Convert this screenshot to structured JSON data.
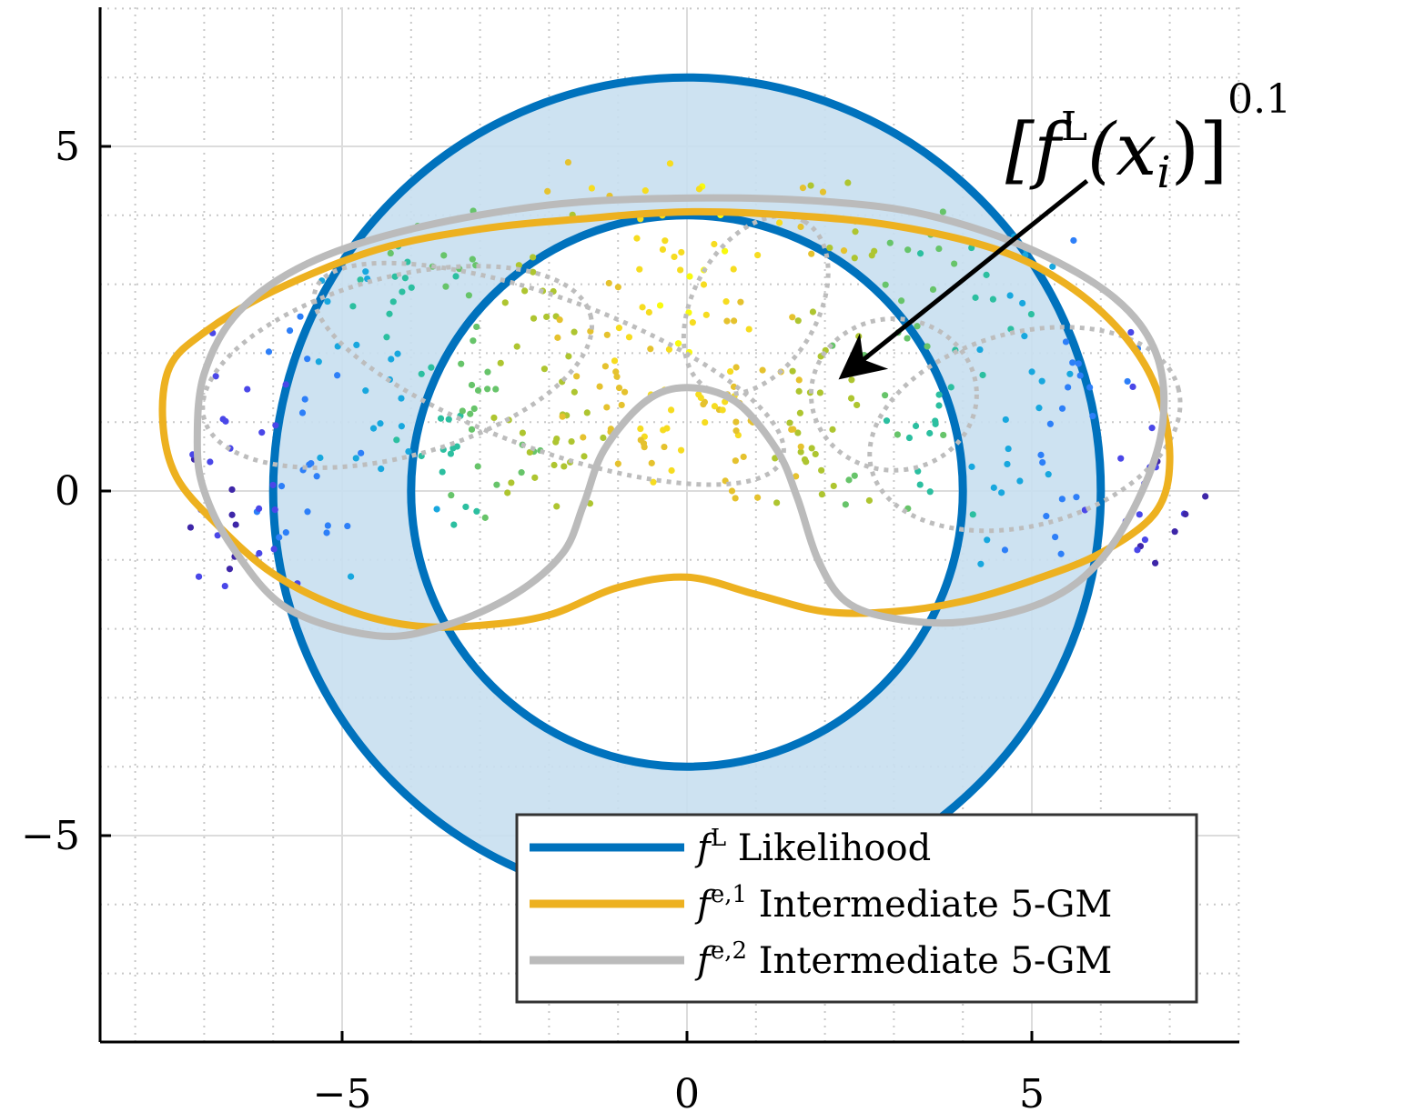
{
  "chart_data": {
    "type": "scatter",
    "xlim": [
      -8.5,
      8
    ],
    "ylim": [
      -8.1,
      7
    ],
    "grid": true,
    "minor_grid": true,
    "x_ticks": [
      -5,
      0,
      5
    ],
    "y_ticks": [
      5,
      0,
      -5
    ],
    "x_tick_labels": [
      "−5",
      "0",
      "5"
    ],
    "y_tick_labels": [
      "5",
      "0",
      "−5"
    ],
    "likelihood": {
      "center": [
        0,
        0
      ],
      "inner_radius": 4.0,
      "outer_radius": 6.0,
      "color": "#0072BD",
      "fill": "#c8dff0"
    },
    "curves": [
      {
        "id": "fe1",
        "color": "#EDB120",
        "style": "solid",
        "points": [
          [
            -7.6,
            1.0
          ],
          [
            -7.5,
            1.8
          ],
          [
            -7.0,
            2.3
          ],
          [
            -6.0,
            2.9
          ],
          [
            -4.5,
            3.5
          ],
          [
            -3.0,
            3.8
          ],
          [
            -1.5,
            3.95
          ],
          [
            0,
            4.05
          ],
          [
            1.5,
            4.0
          ],
          [
            3.0,
            3.85
          ],
          [
            4.5,
            3.5
          ],
          [
            5.5,
            3.0
          ],
          [
            6.3,
            2.3
          ],
          [
            6.8,
            1.5
          ],
          [
            7.0,
            0.5
          ],
          [
            6.8,
            -0.3
          ],
          [
            6.0,
            -0.9
          ],
          [
            5.0,
            -1.3
          ],
          [
            4.0,
            -1.6
          ],
          [
            3.0,
            -1.75
          ],
          [
            2.0,
            -1.75
          ],
          [
            1.0,
            -1.5
          ],
          [
            0,
            -1.25
          ],
          [
            -1.0,
            -1.4
          ],
          [
            -2.0,
            -1.8
          ],
          [
            -3.0,
            -1.95
          ],
          [
            -4.0,
            -1.95
          ],
          [
            -5.0,
            -1.7
          ],
          [
            -6.0,
            -1.2
          ],
          [
            -6.8,
            -0.5
          ],
          [
            -7.4,
            0.2
          ],
          [
            -7.6,
            1.0
          ]
        ]
      },
      {
        "id": "fe2",
        "color": "#BBBBBB",
        "style": "solid",
        "points": [
          [
            -7.1,
            0.7
          ],
          [
            -7.0,
            1.7
          ],
          [
            -6.5,
            2.6
          ],
          [
            -5.5,
            3.3
          ],
          [
            -4.0,
            3.8
          ],
          [
            -2.0,
            4.15
          ],
          [
            0,
            4.25
          ],
          [
            2.0,
            4.2
          ],
          [
            3.5,
            4.0
          ],
          [
            5.0,
            3.5
          ],
          [
            6.2,
            2.8
          ],
          [
            6.8,
            2.0
          ],
          [
            6.9,
            1.0
          ],
          [
            6.6,
            0
          ],
          [
            6.0,
            -1.0
          ],
          [
            5.2,
            -1.6
          ],
          [
            4.0,
            -1.9
          ],
          [
            3.0,
            -1.85
          ],
          [
            2.3,
            -1.6
          ],
          [
            1.9,
            -1.0
          ],
          [
            1.6,
            -0.1
          ],
          [
            1.3,
            0.6
          ],
          [
            0.7,
            1.3
          ],
          [
            0,
            1.5
          ],
          [
            -0.6,
            1.3
          ],
          [
            -1.2,
            0.6
          ],
          [
            -1.5,
            -0.2
          ],
          [
            -1.8,
            -0.9
          ],
          [
            -2.5,
            -1.5
          ],
          [
            -3.5,
            -1.95
          ],
          [
            -4.5,
            -2.1
          ],
          [
            -5.8,
            -1.7
          ],
          [
            -6.6,
            -0.8
          ],
          [
            -7.0,
            0
          ],
          [
            -7.1,
            0.7
          ]
        ]
      }
    ],
    "components": [
      {
        "center": [
          -4.2,
          1.8
        ],
        "rx": 2.9,
        "ry": 1.3,
        "angle": 15
      },
      {
        "center": [
          -2.0,
          1.7
        ],
        "rx": 3.6,
        "ry": 1.1,
        "angle": -20
      },
      {
        "center": [
          1.0,
          2.7
        ],
        "rx": 1.4,
        "ry": 0.9,
        "angle": 60
      },
      {
        "center": [
          4.9,
          0.9
        ],
        "rx": 2.3,
        "ry": 1.4,
        "angle": 15
      },
      {
        "center": [
          3.0,
          1.4
        ],
        "rx": 1.2,
        "ry": 1.1,
        "angle": 0
      }
    ],
    "annotation": {
      "label_main": "[f",
      "label_sup": "L",
      "label_arg": "(x",
      "label_sub": "i",
      "label_close": ")]",
      "label_power": "0.1",
      "arrow_from": [
        5.8,
        4.5
      ],
      "arrow_to": [
        2.3,
        1.7
      ]
    },
    "legend": {
      "position": "bottom-right",
      "entries": [
        {
          "sym": "f",
          "sup": "L",
          "label": " Likelihood",
          "color": "#0072BD"
        },
        {
          "sym": "f",
          "sup": "e,1",
          "label": " Intermediate 5-GM",
          "color": "#EDB120"
        },
        {
          "sym": "f",
          "sup": "e,2",
          "label": " Intermediate 5-GM",
          "color": "#BBBBBB"
        }
      ]
    },
    "scatter_colors": [
      "#3E26A8",
      "#4A47E8",
      "#2D7FF8",
      "#18A7DE",
      "#2CBFA0",
      "#67C46A",
      "#AEC530",
      "#E5C22E",
      "#F6DC20",
      "#F8FA0D"
    ]
  }
}
